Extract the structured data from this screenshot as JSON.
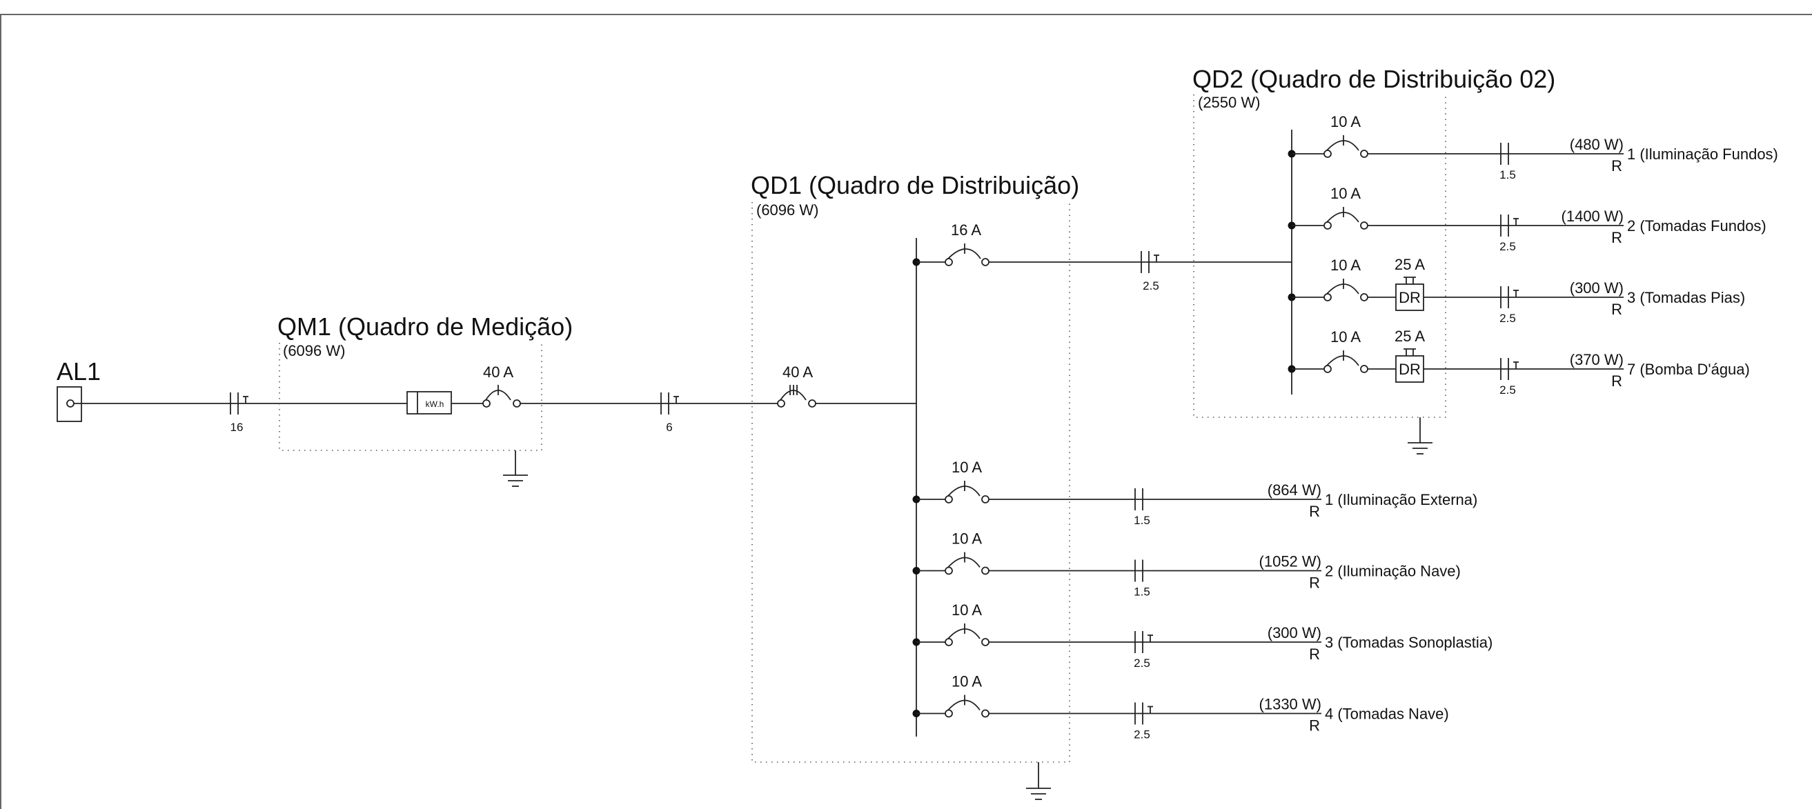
{
  "colors": {
    "line": "#222222",
    "frame": "#666666",
    "background": "#ffffff"
  },
  "source": {
    "label": "AL1",
    "cable_gauge": "16"
  },
  "qm1": {
    "title": "QM1 (Quadro de Medição)",
    "power": "(6096 W)",
    "meter_label": "kW.h",
    "breaker": "40 A",
    "cable_gauge": "6"
  },
  "qd1": {
    "title": "QD1 (Quadro de Distribuição)",
    "power": "(6096 W)",
    "main_breaker": "40 A",
    "feeder_breaker": "16 A",
    "feeder_gauge": "2.5",
    "phase": "R",
    "circuits": [
      {
        "breaker": "10 A",
        "gauge": "1.5",
        "power": "(864 W)",
        "phase": "R",
        "label": "1 (Iluminação Externa)"
      },
      {
        "breaker": "10 A",
        "gauge": "1.5",
        "power": "(1052 W)",
        "phase": "R",
        "label": "2 (Iluminação Nave)"
      },
      {
        "breaker": "10 A",
        "gauge": "2.5",
        "power": "(300 W)",
        "phase": "R",
        "label": "3 (Tomadas Sonoplastia)"
      },
      {
        "breaker": "10 A",
        "gauge": "2.5",
        "power": "(1330 W)",
        "phase": "R",
        "label": "4 (Tomadas Nave)"
      }
    ]
  },
  "qd2": {
    "title": "QD2 (Quadro de Distribuição 02)",
    "power": "(2550 W)",
    "circuits": [
      {
        "breaker": "10 A",
        "gauge": "1.5",
        "power": "(480 W)",
        "phase": "R",
        "label": "1 (Iluminação Fundos)"
      },
      {
        "breaker": "10 A",
        "gauge": "2.5",
        "power": "(1400 W)",
        "phase": "R",
        "label": "2 (Tomadas Fundos)"
      },
      {
        "breaker": "10 A",
        "dr": "DR",
        "dr_rating": "25 A",
        "gauge": "2.5",
        "power": "(300 W)",
        "phase": "R",
        "label": "3 (Tomadas Pias)"
      },
      {
        "breaker": "10 A",
        "dr": "DR",
        "dr_rating": "25 A",
        "gauge": "2.5",
        "power": "(370 W)",
        "phase": "R",
        "label": "7 (Bomba D'água)"
      }
    ]
  }
}
